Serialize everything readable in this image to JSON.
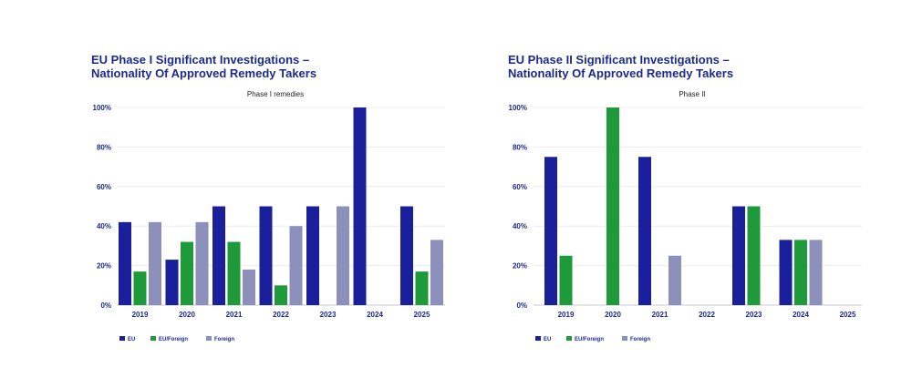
{
  "chart_data": [
    {
      "type": "bar",
      "title_line1": "EU Phase I Significant Investigations –",
      "title_line2": "Nationality Of Approved Remedy Takers",
      "subtitle": "Phase I remedies",
      "categories": [
        "2019",
        "2020",
        "2021",
        "2022",
        "2023",
        "2024",
        "2025"
      ],
      "series": [
        {
          "name": "EU",
          "color": "#1a1f9c",
          "values": [
            42,
            23,
            50,
            50,
            50,
            100,
            50
          ]
        },
        {
          "name": "EU/Foreign",
          "color": "#1f9a3a",
          "values": [
            17,
            32,
            32,
            10,
            0,
            0,
            17
          ]
        },
        {
          "name": "Foreign",
          "color": "#8c90bb",
          "values": [
            42,
            42,
            18,
            40,
            50,
            0,
            33
          ]
        }
      ],
      "yticks": [
        "0%",
        "20%",
        "40%",
        "60%",
        "80%",
        "100%"
      ],
      "ylim": [
        0,
        100
      ],
      "xlabel": "",
      "ylabel": "",
      "legend_position": "bottom-left",
      "grid": true
    },
    {
      "type": "bar",
      "title_line1": "EU Phase II Significant Investigations –",
      "title_line2": "Nationality Of Approved Remedy Takers",
      "subtitle": "Phase II",
      "categories": [
        "2019",
        "2020",
        "2021",
        "2022",
        "2023",
        "2024",
        "2025"
      ],
      "series": [
        {
          "name": "EU",
          "color": "#1a1f9c",
          "values": [
            75,
            0,
            75,
            0,
            50,
            33,
            0
          ]
        },
        {
          "name": "EU/Foreign",
          "color": "#1f9a3a",
          "values": [
            25,
            100,
            0,
            0,
            50,
            33,
            0
          ]
        },
        {
          "name": "Foreign",
          "color": "#8c90bb",
          "values": [
            0,
            0,
            25,
            0,
            0,
            33,
            0
          ]
        }
      ],
      "yticks": [
        "0%",
        "20%",
        "40%",
        "60%",
        "80%",
        "100%"
      ],
      "ylim": [
        0,
        100
      ],
      "xlabel": "",
      "ylabel": "",
      "legend_position": "bottom-left",
      "grid": true
    }
  ]
}
